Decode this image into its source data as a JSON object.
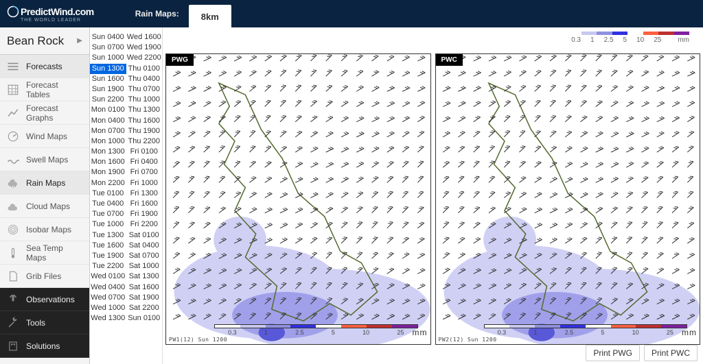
{
  "brand": {
    "name": "PredictWind.com",
    "tagline": "THE WORLD LEADER"
  },
  "header": {
    "label": "Rain Maps:",
    "tab": "8km"
  },
  "location": "Bean Rock",
  "nav": [
    {
      "label": "Forecasts",
      "icon": "forecast",
      "cls": "forecasts active"
    },
    {
      "label": "Forecast Tables",
      "icon": "table",
      "cls": ""
    },
    {
      "label": "Forecast Graphs",
      "icon": "graph",
      "cls": ""
    },
    {
      "label": "Wind Maps",
      "icon": "wind",
      "cls": ""
    },
    {
      "label": "Swell Maps",
      "icon": "swell",
      "cls": ""
    },
    {
      "label": "Rain Maps",
      "icon": "rain",
      "cls": "active"
    },
    {
      "label": "Cloud Maps",
      "icon": "cloud",
      "cls": ""
    },
    {
      "label": "Isobar Maps",
      "icon": "isobar",
      "cls": ""
    },
    {
      "label": "Sea Temp Maps",
      "icon": "temp",
      "cls": ""
    },
    {
      "label": "Grib Files",
      "icon": "grib",
      "cls": ""
    },
    {
      "label": "Observations",
      "icon": "obs",
      "cls": "dark"
    },
    {
      "label": "Tools",
      "icon": "tools",
      "cls": "dark"
    },
    {
      "label": "Solutions",
      "icon": "solutions",
      "cls": "dark"
    }
  ],
  "times_col1": [
    "Sun 0400",
    "Sun 0700",
    "Sun 1000",
    "Sun 1300",
    "Sun 1600",
    "Sun 1900",
    "Sun 2200",
    "Mon 0100",
    "Mon 0400",
    "Mon 0700",
    "Mon 1000",
    "Mon 1300",
    "Mon 1600",
    "Mon 1900",
    "Mon 2200",
    "Tue 0100",
    "Tue 0400",
    "Tue 0700",
    "Tue 1000",
    "Tue 1300",
    "Tue 1600",
    "Tue 1900",
    "Tue 2200",
    "Wed 0100",
    "Wed 0400",
    "Wed 0700",
    "Wed 1000",
    "Wed 1300"
  ],
  "times_col2": [
    "Wed 1600",
    "Wed 1900",
    "Wed 2200",
    "Thu 0100",
    "Thu 0400",
    "Thu 0700",
    "Thu 1000",
    "Thu 1300",
    "Thu 1600",
    "Thu 1900",
    "Thu 2200",
    "Fri 0100",
    "Fri 0400",
    "Fri 0700",
    "Fri 1000",
    "Fri 1300",
    "Fri 1600",
    "Fri 1900",
    "Fri 2200",
    "Sat 0100",
    "Sat 0400",
    "Sat 0700",
    "Sat 1000",
    "Sat 1300",
    "Sat 1600",
    "Sat 1900",
    "Sat 2200",
    "Sun 0100"
  ],
  "selected_time": "Sun 1300",
  "legend": {
    "ticks": [
      "0.3",
      "1",
      "2.5",
      "5",
      "10",
      "25",
      "mm"
    ],
    "colors": [
      "#ffffff",
      "#c8c8f0",
      "#9090e0",
      "#3030e0",
      "#ffffff",
      "#ff6040",
      "#c03030",
      "#8020a0"
    ]
  },
  "map_legend": {
    "ticks": [
      "0.3",
      "1",
      "2.5",
      "5",
      "10",
      "25"
    ],
    "colors": [
      "#ffffff",
      "#c8c8f0",
      "#9090e0",
      "#3030e0",
      "#ffffff",
      "#ff6040",
      "#c03030",
      "#8020a0"
    ],
    "unit": "mm"
  },
  "maps": [
    {
      "tag": "PWG",
      "src": "PW1(12) Sun 1200"
    },
    {
      "tag": "PWC",
      "src": "PW2(12) Sun 1200"
    }
  ],
  "buttons": {
    "print1": "Print PWG",
    "print2": "Print PWC"
  },
  "rain": {
    "color_light": "#d0d0f5",
    "color_med": "#a0a0ea",
    "color_dark": "#5858d8",
    "coast_color": "#556b2f",
    "barb_color": "#333333"
  }
}
